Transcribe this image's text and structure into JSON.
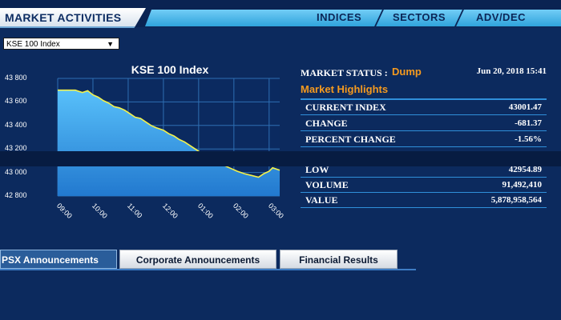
{
  "header": {
    "title": "MARKET ACTIVITIES",
    "nav": [
      "INDICES",
      "SECTORS",
      "ADV/DEC"
    ]
  },
  "index_select": {
    "selected": "KSE 100 Index"
  },
  "chart_data": {
    "type": "area",
    "title": "KSE 100 Index",
    "xlabel": "",
    "ylabel": "",
    "x_ticks": [
      "09:00",
      "10:00",
      "11:00",
      "12:00",
      "01:00",
      "02:00",
      "03:00"
    ],
    "y_ticks": [
      "43 800",
      "43 600",
      "43 400",
      "43 200",
      "43 000",
      "42 800"
    ],
    "ylim": [
      42800,
      43800
    ],
    "grid": true,
    "series": [
      {
        "x": [
          0,
          0.5,
          0.7,
          0.85,
          1.0,
          1.15,
          1.3,
          1.45,
          1.6,
          1.75,
          1.9,
          2.05,
          2.2,
          2.35,
          2.5,
          2.65,
          2.8,
          3.0,
          3.15,
          3.3,
          3.45,
          3.6,
          3.75,
          3.9,
          4.05,
          4.2,
          4.35,
          4.5,
          4.65,
          4.8,
          4.95,
          5.1,
          5.3,
          5.5,
          5.7,
          5.85,
          6.0,
          6.1,
          6.2,
          6.3
        ],
        "values": [
          43700,
          43700,
          43680,
          43695,
          43660,
          43640,
          43610,
          43590,
          43560,
          43550,
          43530,
          43500,
          43470,
          43460,
          43430,
          43400,
          43380,
          43360,
          43330,
          43310,
          43280,
          43260,
          43230,
          43200,
          43170,
          43150,
          43110,
          43090,
          43070,
          43050,
          43030,
          43010,
          42990,
          42975,
          42960,
          42990,
          43010,
          43040,
          43030,
          43020
        ]
      }
    ]
  },
  "market": {
    "status_label": "MARKET STATUS :",
    "status_value": "Dump",
    "datetime": "Jun 20, 2018 15:41"
  },
  "highlights": {
    "title": "Market Highlights",
    "rows": [
      {
        "label": "CURRENT INDEX",
        "value": "43001.47"
      },
      {
        "label": "CHANGE",
        "value": "-681.37"
      },
      {
        "label": "PERCENT CHANGE",
        "value": "-1.56%"
      },
      {
        "label": "LOW",
        "value": "42954.89"
      },
      {
        "label": "VOLUME",
        "value": "91,492,410"
      },
      {
        "label": "VALUE",
        "value": "5,878,958,564"
      }
    ]
  },
  "tabs": [
    {
      "label": "PSX Announcements",
      "active": true
    },
    {
      "label": "Corporate Announcements",
      "active": false
    },
    {
      "label": "Financial Results",
      "active": false
    }
  ],
  "colors": {
    "background": "#0c2a5e",
    "accent_orange": "#f59a1f",
    "line_yellow": "#f5f24a",
    "area_blue": "#3fa9f0"
  }
}
